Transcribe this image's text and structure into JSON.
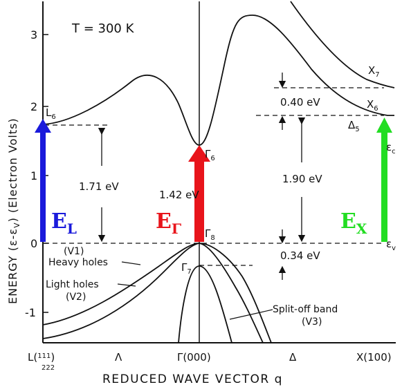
{
  "figure": {
    "temperature_label": "T = 300 K",
    "y_axis_label": "ENERGY (ε-ε",
    "y_axis_label_sub": "V",
    "y_axis_label_end": ")   (Electron Volts)",
    "x_axis_label": "REDUCED WAVE VECTOR  q",
    "y_ticks": [
      "3",
      "2",
      "1",
      "0",
      "-1"
    ],
    "x_ticks": {
      "L": "L(",
      "L_frac": "1",
      "L_den": "2",
      "L_close": ")",
      "Lambda": "Λ",
      "Gamma": "Γ(000)",
      "Delta": "Δ",
      "X": "X(100)"
    }
  },
  "labels": {
    "L6": "L",
    "L6_sub": "6",
    "Gamma6": "Γ",
    "Gamma6_sub": "6",
    "Gamma8": "Γ",
    "Gamma8_sub": "8",
    "Gamma7": "Γ",
    "Gamma7_sub": "7",
    "X6": "X",
    "X6_sub": "6",
    "X7": "X",
    "X7_sub": "7",
    "Delta5": "Δ",
    "Delta5_sub": "5",
    "ec": "ε",
    "ec_sub": "c",
    "ev": "ε",
    "ev_sub": "v",
    "gap_L": "1.71 eV",
    "gap_Gamma": "1.42 eV",
    "gap_X": "1.90 eV",
    "split_X": "0.40 eV",
    "split_off": "0.34 eV",
    "V1": "(V1)",
    "heavy_holes": "Heavy holes",
    "light_holes": "Light holes",
    "V2": "(V2)",
    "split_off_band": "Split-off band",
    "V3": "(V3)"
  },
  "arrows": [
    {
      "name": "E",
      "sub": "L",
      "color": "#1a1adb"
    },
    {
      "name": "E",
      "sub": "Γ",
      "color": "#e8141b"
    },
    {
      "name": "E",
      "sub": "X",
      "color": "#22dd22"
    }
  ]
}
